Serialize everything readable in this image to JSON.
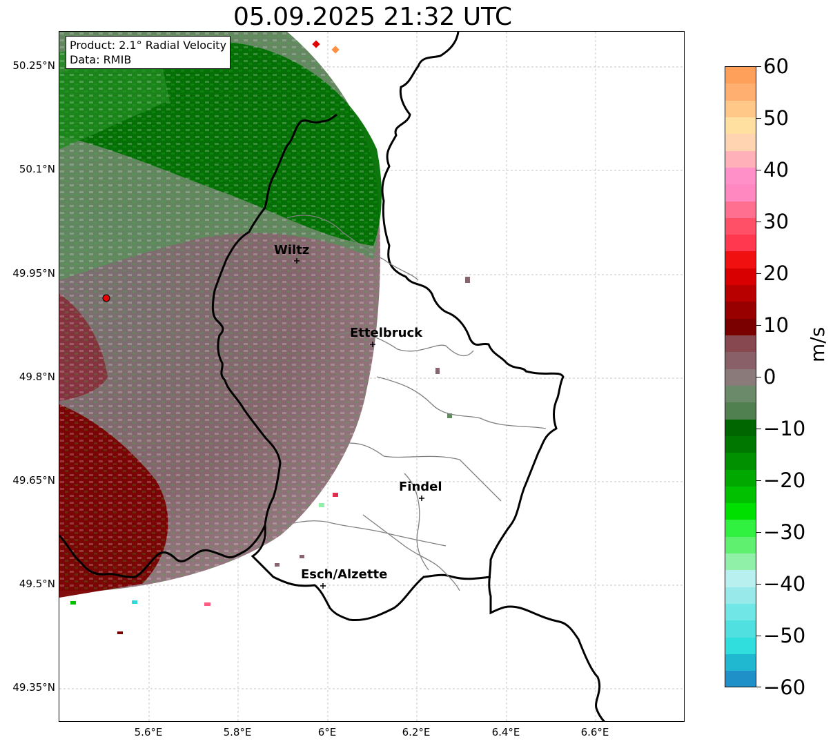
{
  "title": "05.09.2025 21:32 UTC",
  "info": {
    "product": "Product: 2.1° Radial Velocity",
    "data": "Data: RMIB"
  },
  "axes": {
    "y_ticks": [
      "50.25°N",
      "50.1°N",
      "49.95°N",
      "49.8°N",
      "49.65°N",
      "49.5°N",
      "49.35°N"
    ],
    "x_ticks": [
      "5.6°E",
      "5.8°E",
      "6°E",
      "6.2°E",
      "6.4°E",
      "6.6°E"
    ],
    "lon_range": [
      5.4,
      6.8
    ],
    "lat_range": [
      49.3,
      50.3
    ]
  },
  "cities": [
    {
      "name": "Wiltz",
      "lon": 5.93,
      "lat": 49.97
    },
    {
      "name": "Ettelbruck",
      "lon": 6.1,
      "lat": 49.85
    },
    {
      "name": "Findel",
      "lon": 6.21,
      "lat": 49.63
    },
    {
      "name": "Esch/Alzette",
      "lon": 5.99,
      "lat": 49.5
    }
  ],
  "radar_site": {
    "lon": 5.51,
    "lat": 49.915,
    "color": "#e60000"
  },
  "colorbar": {
    "label": "m/s",
    "ticks": [
      "60",
      "50",
      "40",
      "30",
      "20",
      "10",
      "0",
      "−10",
      "−20",
      "−30",
      "−40",
      "−50",
      "−60"
    ],
    "range": [
      -60,
      60
    ],
    "colors_top_to_bottom": [
      "#ffa05a",
      "#ffb070",
      "#ffc888",
      "#ffe0a0",
      "#ffd4b0",
      "#ffb0b8",
      "#ff90c8",
      "#ff88c0",
      "#ff7090",
      "#ff5068",
      "#ff3850",
      "#f01010",
      "#d80000",
      "#b80000",
      "#980000",
      "#7a0000",
      "#884850",
      "#8a6068",
      "#8a7a7a",
      "#6a8a6a",
      "#508050",
      "#006600",
      "#007800",
      "#009000",
      "#00a800",
      "#00c000",
      "#00e000",
      "#30f040",
      "#60f070",
      "#90f0a8",
      "#b8f0f0",
      "#98eaea",
      "#70e6e6",
      "#50e0e0",
      "#30dede",
      "#20b8d0",
      "#2090c8"
    ]
  },
  "colors": {
    "approaching_strong": "#007000",
    "approaching_mid": "#30c030",
    "near_zero_green": "#5f8a5f",
    "near_zero_mauve": "#86656e",
    "receding": "#7a0000",
    "border": "#000000",
    "canton_line": "#808080"
  }
}
